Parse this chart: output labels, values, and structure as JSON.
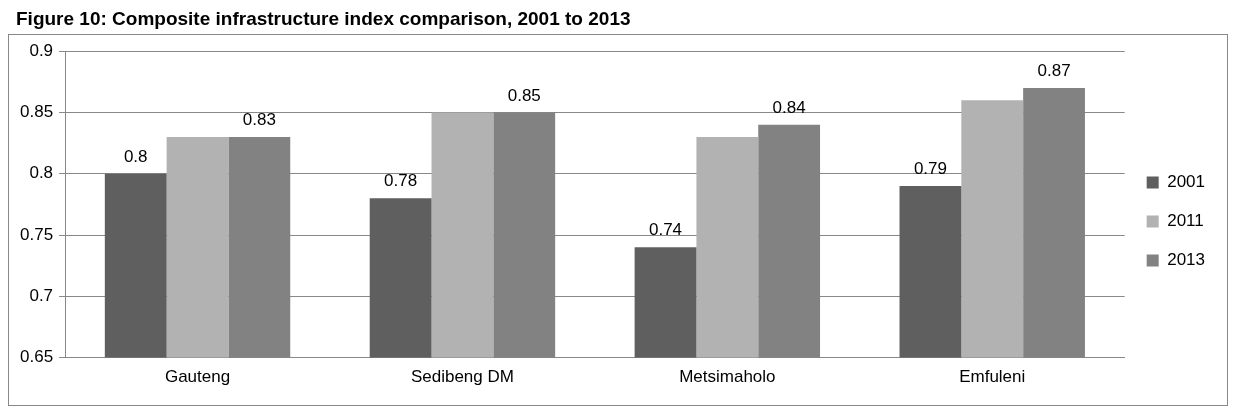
{
  "chart_data": {
    "type": "bar",
    "title": "Figure 10: Composite infrastructure index comparison, 2001 to 2013",
    "categories": [
      "Gauteng",
      "Sedibeng DM",
      "Metsimaholo",
      "Emfuleni"
    ],
    "series": [
      {
        "name": "2001",
        "color": "#5f5f5f",
        "values": [
          0.8,
          0.78,
          0.74,
          0.79
        ],
        "value_labels": [
          "0.8",
          "0.78",
          "0.74",
          "0.79"
        ]
      },
      {
        "name": "2011",
        "color": "#b2b2b2",
        "values": [
          0.83,
          0.85,
          0.83,
          0.86
        ],
        "value_labels": [
          null,
          null,
          null,
          null
        ]
      },
      {
        "name": "2013",
        "color": "#828282",
        "values": [
          0.83,
          0.85,
          0.84,
          0.87
        ],
        "value_labels": [
          "0.83",
          "0.85",
          "0.84",
          "0.87"
        ]
      }
    ],
    "ylim": [
      0.65,
      0.9
    ],
    "yticks": [
      0.65,
      0.7,
      0.75,
      0.8,
      0.85,
      0.9
    ],
    "grid": "y",
    "legend": "right"
  }
}
